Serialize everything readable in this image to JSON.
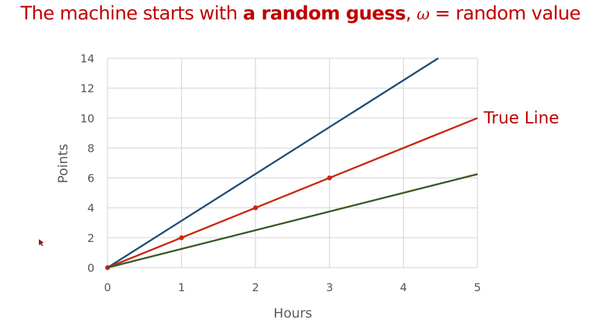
{
  "slide": {
    "title_part1": "The machine starts with ",
    "title_bold": "a random guess",
    "title_part2": ", ",
    "title_symbol": "ω",
    "title_part3": " = random value"
  },
  "chart_data": {
    "type": "line",
    "xlabel": "Hours",
    "ylabel": "Points",
    "xlim": [
      0,
      5
    ],
    "ylim": [
      0,
      14
    ],
    "x_ticks": [
      "0",
      "1",
      "2",
      "3",
      "4",
      "5"
    ],
    "y_ticks": [
      "0",
      "2",
      "4",
      "6",
      "8",
      "10",
      "12",
      "14"
    ],
    "grid": true,
    "series": [
      {
        "color": "#1f4e79",
        "x": [
          0,
          4.47
        ],
        "y": [
          0,
          14
        ],
        "markers": false
      },
      {
        "name": "True Line",
        "color": "#c9270e",
        "x": [
          0,
          1,
          2,
          3,
          5
        ],
        "y": [
          0,
          2,
          4,
          6,
          10
        ],
        "markers": [
          0,
          1,
          2,
          3
        ]
      },
      {
        "color": "#3a5a24",
        "x": [
          0,
          5
        ],
        "y": [
          0,
          6.25
        ],
        "markers": false
      }
    ],
    "annotations": [
      {
        "text": "True Line",
        "color": "#c00000"
      }
    ]
  }
}
